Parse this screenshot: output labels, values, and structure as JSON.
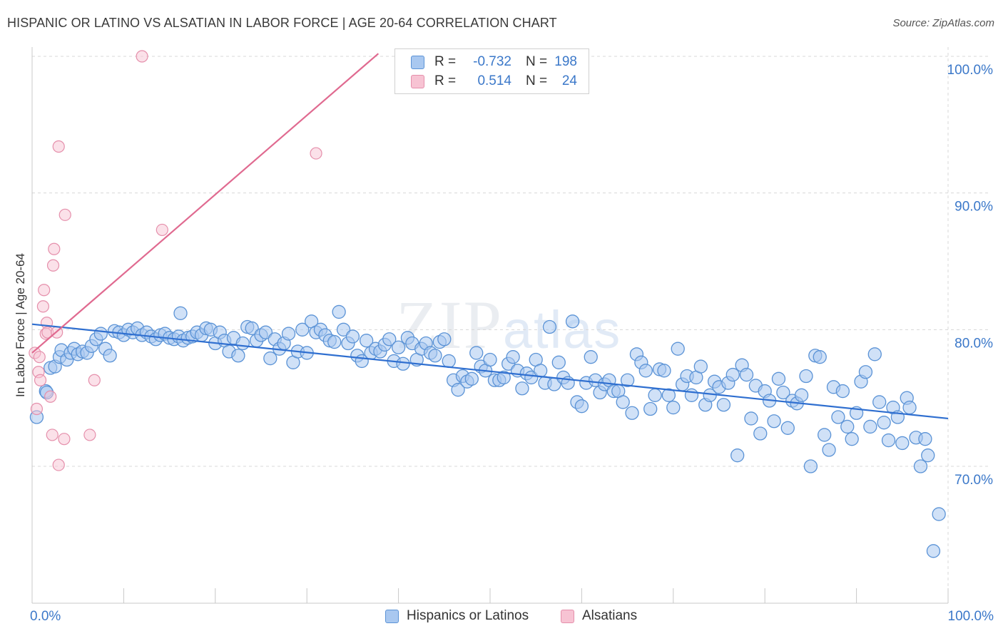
{
  "header": {
    "title": "HISPANIC OR LATINO VS ALSATIAN IN LABOR FORCE | AGE 20-64 CORRELATION CHART",
    "source": "Source: ZipAtlas.com"
  },
  "watermark": {
    "zip": "ZIP",
    "atlas": "atlas"
  },
  "legend": {
    "series": [
      {
        "r_label": "R =",
        "r_value": "-0.732",
        "n_label": "N =",
        "n_value": "198"
      },
      {
        "r_label": "R =",
        "r_value": "0.514",
        "n_label": "N =",
        "n_value": "24"
      }
    ]
  },
  "bottom_legend": {
    "blue": "Hispanics or Latinos",
    "pink": "Alsatians"
  },
  "colors": {
    "blue_fill": "#a9c8f0",
    "blue_stroke": "#5b93d6",
    "blue_line": "#2f6fd0",
    "pink_fill": "#f7c3d3",
    "pink_stroke": "#e58fab",
    "pink_line": "#e06a90",
    "tick_label": "#3b78c9",
    "grid": "#d8d8d8"
  },
  "chart_data": {
    "type": "scatter",
    "title": "HISPANIC OR LATINO VS ALSATIAN IN LABOR FORCE | AGE 20-64 CORRELATION CHART",
    "xlabel": "",
    "ylabel": "In Labor Force | Age 20-64",
    "xlim": [
      0,
      100
    ],
    "ylim": [
      60.5,
      101
    ],
    "x_tick_labels": [
      "0.0%",
      "100.0%"
    ],
    "y_ticks": [
      70,
      80,
      90,
      100
    ],
    "y_tick_labels": [
      "70.0%",
      "80.0%",
      "90.0%",
      "100.0%"
    ],
    "series": [
      {
        "name": "Hispanics or Latinos",
        "r": -0.732,
        "n": 198,
        "trend": {
          "x": [
            0,
            100
          ],
          "y": [
            80.4,
            73.5
          ]
        },
        "points": [
          [
            0.5,
            73.6
          ],
          [
            1.5,
            75.5
          ],
          [
            1.6,
            75.4
          ],
          [
            2.0,
            77.2
          ],
          [
            2.5,
            77.3
          ],
          [
            3.0,
            78.0
          ],
          [
            3.2,
            78.5
          ],
          [
            3.8,
            77.8
          ],
          [
            4.2,
            78.3
          ],
          [
            4.6,
            78.6
          ],
          [
            5.0,
            78.2
          ],
          [
            5.5,
            78.4
          ],
          [
            6.0,
            78.3
          ],
          [
            6.5,
            78.8
          ],
          [
            7.0,
            79.3
          ],
          [
            7.5,
            79.7
          ],
          [
            8.0,
            78.6
          ],
          [
            8.5,
            78.1
          ],
          [
            9.0,
            79.9
          ],
          [
            9.5,
            79.8
          ],
          [
            10.0,
            79.6
          ],
          [
            10.5,
            80.0
          ],
          [
            11.0,
            79.8
          ],
          [
            11.5,
            80.1
          ],
          [
            12.0,
            79.6
          ],
          [
            12.5,
            79.8
          ],
          [
            13.0,
            79.5
          ],
          [
            13.5,
            79.3
          ],
          [
            14.0,
            79.6
          ],
          [
            14.5,
            79.7
          ],
          [
            15.0,
            79.4
          ],
          [
            15.5,
            79.3
          ],
          [
            16.0,
            79.5
          ],
          [
            16.2,
            81.2
          ],
          [
            16.5,
            79.2
          ],
          [
            17.0,
            79.4
          ],
          [
            17.5,
            79.5
          ],
          [
            18.0,
            79.8
          ],
          [
            18.5,
            79.6
          ],
          [
            19.0,
            80.1
          ],
          [
            19.5,
            80.0
          ],
          [
            20.0,
            79.0
          ],
          [
            20.5,
            79.8
          ],
          [
            21.0,
            79.2
          ],
          [
            21.5,
            78.4
          ],
          [
            22.0,
            79.4
          ],
          [
            22.5,
            78.1
          ],
          [
            23.0,
            79.0
          ],
          [
            23.5,
            80.2
          ],
          [
            24.0,
            80.1
          ],
          [
            24.5,
            79.2
          ],
          [
            25.0,
            79.6
          ],
          [
            25.5,
            79.8
          ],
          [
            26.0,
            77.9
          ],
          [
            26.5,
            79.3
          ],
          [
            27.0,
            78.6
          ],
          [
            27.5,
            79.0
          ],
          [
            28.0,
            79.7
          ],
          [
            28.5,
            77.6
          ],
          [
            29.0,
            78.4
          ],
          [
            29.5,
            80.0
          ],
          [
            30.0,
            78.3
          ],
          [
            30.5,
            80.6
          ],
          [
            31.0,
            79.8
          ],
          [
            31.5,
            80.0
          ],
          [
            32.0,
            79.6
          ],
          [
            32.5,
            79.2
          ],
          [
            33.0,
            79.1
          ],
          [
            33.5,
            81.3
          ],
          [
            34.0,
            80.0
          ],
          [
            34.5,
            79.0
          ],
          [
            35.0,
            79.5
          ],
          [
            35.5,
            78.1
          ],
          [
            36.0,
            77.7
          ],
          [
            36.5,
            79.2
          ],
          [
            37.0,
            78.3
          ],
          [
            37.5,
            78.6
          ],
          [
            38.0,
            78.4
          ],
          [
            38.5,
            78.9
          ],
          [
            39.0,
            79.3
          ],
          [
            39.5,
            77.7
          ],
          [
            40.0,
            78.7
          ],
          [
            40.5,
            77.5
          ],
          [
            41.0,
            79.4
          ],
          [
            41.5,
            79.0
          ],
          [
            42.0,
            77.8
          ],
          [
            42.5,
            78.6
          ],
          [
            43.0,
            79.0
          ],
          [
            43.5,
            78.3
          ],
          [
            44.0,
            78.1
          ],
          [
            44.5,
            79.1
          ],
          [
            45.0,
            79.3
          ],
          [
            45.5,
            77.7
          ],
          [
            46.0,
            76.3
          ],
          [
            46.5,
            75.6
          ],
          [
            47.0,
            76.6
          ],
          [
            47.5,
            76.2
          ],
          [
            48.0,
            76.4
          ],
          [
            48.5,
            78.3
          ],
          [
            49.0,
            77.3
          ],
          [
            49.5,
            77.0
          ],
          [
            50.0,
            77.8
          ],
          [
            50.5,
            76.3
          ],
          [
            51.0,
            76.3
          ],
          [
            51.5,
            76.5
          ],
          [
            52.0,
            77.5
          ],
          [
            52.5,
            78.0
          ],
          [
            53.0,
            77.0
          ],
          [
            53.5,
            75.7
          ],
          [
            54.0,
            76.8
          ],
          [
            54.5,
            76.5
          ],
          [
            55.0,
            77.8
          ],
          [
            55.5,
            77.0
          ],
          [
            56.0,
            76.1
          ],
          [
            56.5,
            80.2
          ],
          [
            57.0,
            76.0
          ],
          [
            57.5,
            77.6
          ],
          [
            58.0,
            76.5
          ],
          [
            58.5,
            76.1
          ],
          [
            59.0,
            80.6
          ],
          [
            59.5,
            74.7
          ],
          [
            60.0,
            74.4
          ],
          [
            60.5,
            76.1
          ],
          [
            61.0,
            78.0
          ],
          [
            61.5,
            76.3
          ],
          [
            62.0,
            75.4
          ],
          [
            62.5,
            76.0
          ],
          [
            63.0,
            76.3
          ],
          [
            63.5,
            75.5
          ],
          [
            64.0,
            75.5
          ],
          [
            64.5,
            74.7
          ],
          [
            65.0,
            76.3
          ],
          [
            65.5,
            73.9
          ],
          [
            66.0,
            78.2
          ],
          [
            66.5,
            77.6
          ],
          [
            67.0,
            77.0
          ],
          [
            67.5,
            74.2
          ],
          [
            68.0,
            75.2
          ],
          [
            68.5,
            77.1
          ],
          [
            69.0,
            77.0
          ],
          [
            69.5,
            75.2
          ],
          [
            70.0,
            74.3
          ],
          [
            70.5,
            78.6
          ],
          [
            71.0,
            76.0
          ],
          [
            71.5,
            76.6
          ],
          [
            72.0,
            75.2
          ],
          [
            72.5,
            76.5
          ],
          [
            73.0,
            77.3
          ],
          [
            73.5,
            74.5
          ],
          [
            74.0,
            75.2
          ],
          [
            74.5,
            76.2
          ],
          [
            75.0,
            75.8
          ],
          [
            75.5,
            74.5
          ],
          [
            76.0,
            76.1
          ],
          [
            76.5,
            76.7
          ],
          [
            77.0,
            70.8
          ],
          [
            77.5,
            77.4
          ],
          [
            78.0,
            76.7
          ],
          [
            78.5,
            73.5
          ],
          [
            79.0,
            75.9
          ],
          [
            79.5,
            72.4
          ],
          [
            80.0,
            75.5
          ],
          [
            80.5,
            74.8
          ],
          [
            81.0,
            73.3
          ],
          [
            81.5,
            76.4
          ],
          [
            82.0,
            75.4
          ],
          [
            82.5,
            72.8
          ],
          [
            83.0,
            74.8
          ],
          [
            83.5,
            74.6
          ],
          [
            84.0,
            75.2
          ],
          [
            84.5,
            76.6
          ],
          [
            85.0,
            70.0
          ],
          [
            85.5,
            78.1
          ],
          [
            86.0,
            78.0
          ],
          [
            86.5,
            72.3
          ],
          [
            87.0,
            71.2
          ],
          [
            87.5,
            75.8
          ],
          [
            88.0,
            73.6
          ],
          [
            88.5,
            75.5
          ],
          [
            89.0,
            72.9
          ],
          [
            89.5,
            72.0
          ],
          [
            90.0,
            73.9
          ],
          [
            90.5,
            76.2
          ],
          [
            91.0,
            76.9
          ],
          [
            91.5,
            72.9
          ],
          [
            92.0,
            78.2
          ],
          [
            92.5,
            74.7
          ],
          [
            93.0,
            73.2
          ],
          [
            93.5,
            71.9
          ],
          [
            94.0,
            74.3
          ],
          [
            94.5,
            73.6
          ],
          [
            95.0,
            71.7
          ],
          [
            95.5,
            75.0
          ],
          [
            95.8,
            74.3
          ],
          [
            96.5,
            72.1
          ],
          [
            97.0,
            70.0
          ],
          [
            97.5,
            72.0
          ],
          [
            97.8,
            70.8
          ],
          [
            98.4,
            63.8
          ],
          [
            99.0,
            66.5
          ]
        ]
      },
      {
        "name": "Alsatians",
        "r": 0.514,
        "n": 24,
        "trend": {
          "x": [
            0,
            37.8
          ],
          "y": [
            78.3,
            100.2
          ]
        },
        "points": [
          [
            0.3,
            78.3
          ],
          [
            0.5,
            74.2
          ],
          [
            0.7,
            76.9
          ],
          [
            0.8,
            78.0
          ],
          [
            0.9,
            76.3
          ],
          [
            1.2,
            81.7
          ],
          [
            1.3,
            82.9
          ],
          [
            1.5,
            79.7
          ],
          [
            1.6,
            80.5
          ],
          [
            1.7,
            79.8
          ],
          [
            2.0,
            75.1
          ],
          [
            2.2,
            72.3
          ],
          [
            2.3,
            84.7
          ],
          [
            2.4,
            85.9
          ],
          [
            2.7,
            79.8
          ],
          [
            2.9,
            70.1
          ],
          [
            2.9,
            93.4
          ],
          [
            3.5,
            72.0
          ],
          [
            3.6,
            88.4
          ],
          [
            6.3,
            72.3
          ],
          [
            6.8,
            76.3
          ],
          [
            12.0,
            100.0
          ],
          [
            14.2,
            87.3
          ],
          [
            31.0,
            92.9
          ]
        ]
      }
    ]
  }
}
